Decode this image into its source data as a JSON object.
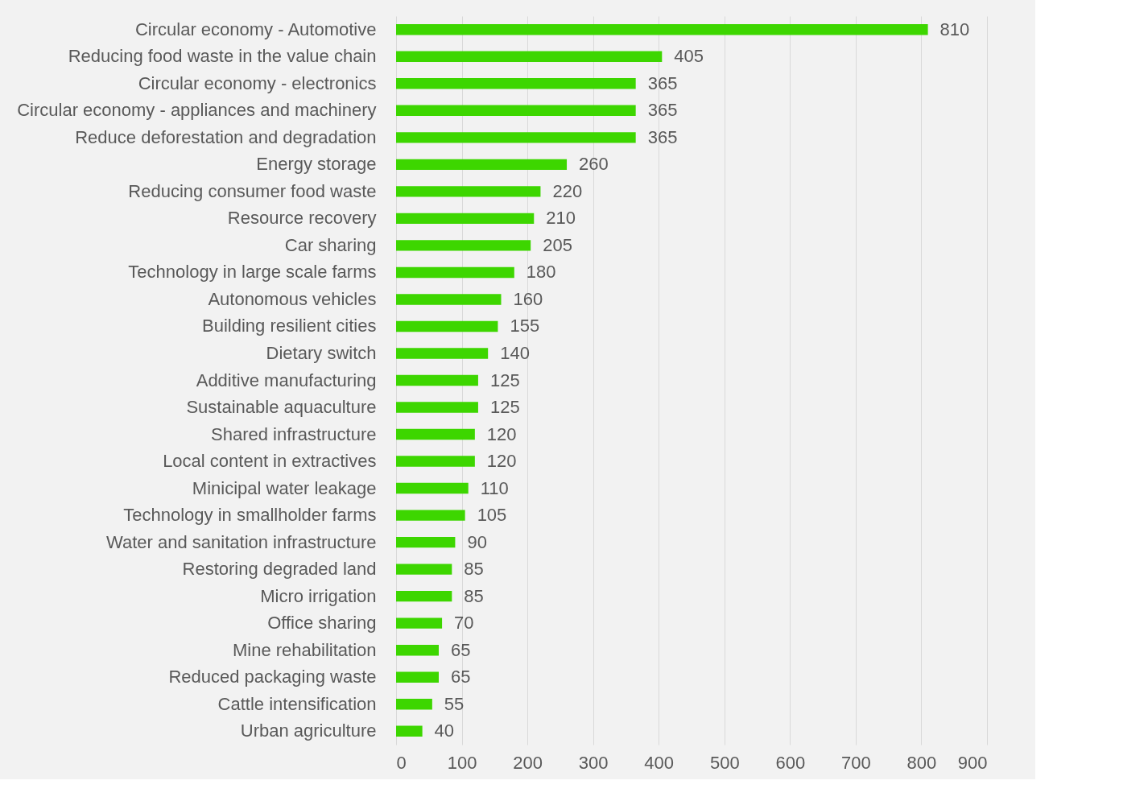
{
  "chart_data": {
    "type": "bar",
    "orientation": "horizontal",
    "categories": [
      "Circular economy - Automotive",
      "Reducing food waste in the value chain",
      "Circular economy - electronics",
      "Circular economy - appliances and machinery",
      "Reduce deforestation and degradation",
      "Energy storage",
      "Reducing consumer food waste",
      "Resource recovery",
      "Car sharing",
      "Technology in large scale farms",
      "Autonomous vehicles",
      "Building resilient cities",
      "Dietary switch",
      "Additive manufacturing",
      "Sustainable aquaculture",
      "Shared infrastructure",
      "Local content in extractives",
      "Minicipal water leakage",
      "Technology in smallholder farms",
      "Water and sanitation infrastructure",
      "Restoring degraded land",
      "Micro irrigation",
      "Office sharing",
      "Mine rehabilitation",
      "Reduced packaging waste",
      "Cattle intensification",
      "Urban agriculture"
    ],
    "values": [
      810,
      405,
      365,
      365,
      365,
      260,
      220,
      210,
      205,
      180,
      160,
      155,
      140,
      125,
      125,
      120,
      120,
      110,
      105,
      90,
      85,
      85,
      70,
      65,
      65,
      55,
      40
    ],
    "color": "#3dd600",
    "xlim": [
      0,
      900
    ],
    "xticks": [
      0,
      100,
      200,
      300,
      400,
      500,
      600,
      700,
      800,
      900
    ],
    "grid": "x",
    "data_labels": true
  }
}
